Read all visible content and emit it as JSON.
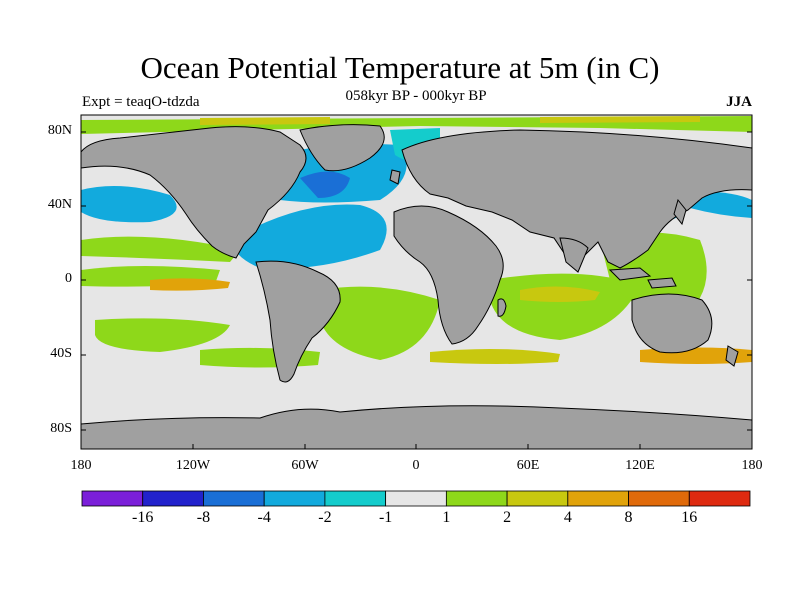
{
  "title": "Ocean Potential Temperature at 5m (in C)",
  "subtitle": "058kyr BP - 000kyr BP",
  "experiment_label": "Expt = teaqO-tdzda",
  "season_label": "JJA",
  "lat_ticks": [
    "80N",
    "40N",
    "0",
    "40S",
    "80S"
  ],
  "lon_ticks": [
    "180",
    "120W",
    "60W",
    "0",
    "60E",
    "120E",
    "180"
  ],
  "colorbar": {
    "colors": [
      "#7b1fd9",
      "#2222cc",
      "#1a6fd6",
      "#12aadd",
      "#14cccc",
      "#e6e6e6",
      "#8ed81a",
      "#c8c80f",
      "#e1a30a",
      "#e06a0a",
      "#de2a10"
    ],
    "labels": [
      "-16",
      "-8",
      "-4",
      "-2",
      "-1",
      "1",
      "2",
      "4",
      "8",
      "16"
    ]
  },
  "colors": {
    "land": "#a0a0a0",
    "ocean_neutral": "#e6e6e6",
    "coast": "#000000"
  }
}
